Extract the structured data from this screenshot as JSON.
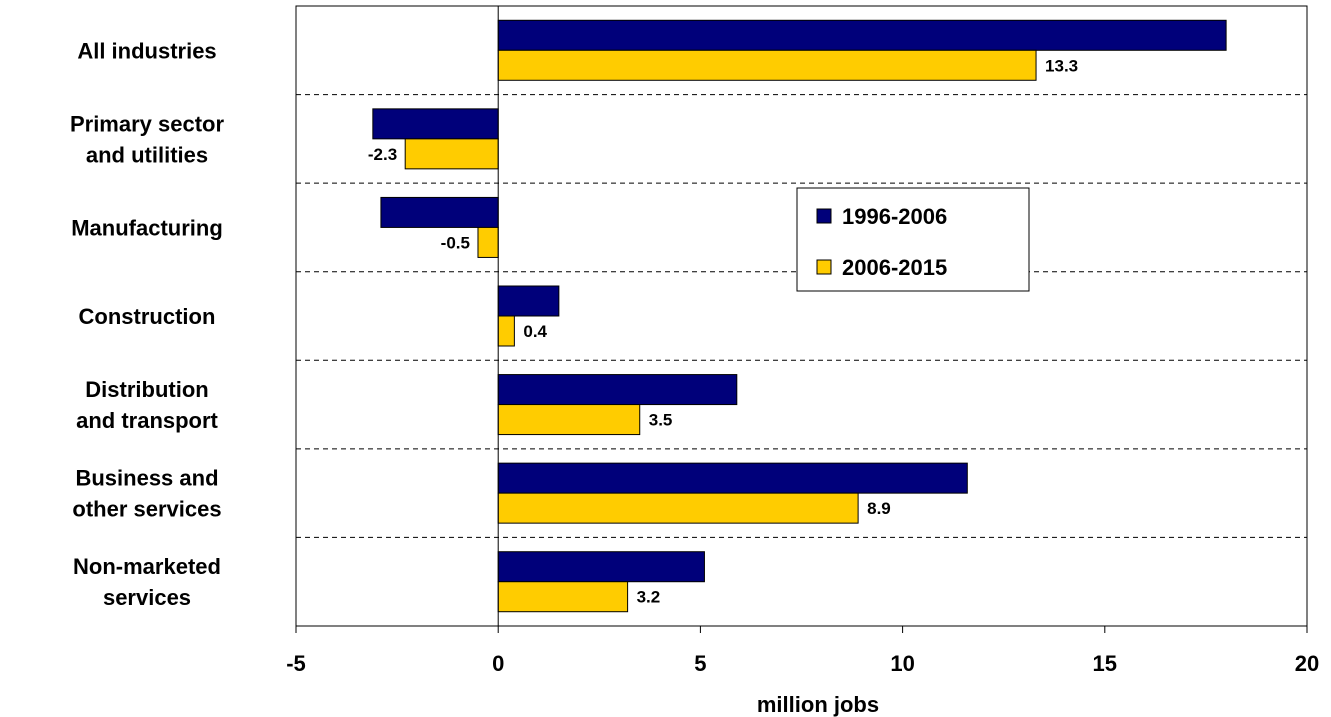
{
  "chart_data": {
    "type": "bar",
    "orientation": "horizontal",
    "categories": [
      [
        "All industries"
      ],
      [
        "Primary sector",
        "and utilities"
      ],
      [
        "Manufacturing"
      ],
      [
        "Construction"
      ],
      [
        "Distribution",
        "and transport"
      ],
      [
        "Business and",
        "other services"
      ],
      [
        "Non-marketed",
        "services"
      ]
    ],
    "series": [
      {
        "name": "1996-2006",
        "color": "#00007a",
        "values": [
          18.0,
          -3.1,
          -2.9,
          1.5,
          5.9,
          11.6,
          5.1
        ],
        "labels": []
      },
      {
        "name": "2006-2015",
        "color": "#ffcc00",
        "values": [
          13.3,
          -2.3,
          -0.5,
          0.4,
          3.5,
          8.9,
          3.2
        ],
        "labels": [
          "13.3",
          "-2.3",
          "-0.5",
          "0.4",
          "3.5",
          "8.9",
          "3.2"
        ]
      }
    ],
    "xlabel": "million jobs",
    "xlim": [
      -5,
      20
    ],
    "xticks": [
      "-5",
      "0",
      "5",
      "10",
      "15",
      "20"
    ],
    "grid": "dashed-horizontal-between-categories",
    "legend": "center-right"
  }
}
